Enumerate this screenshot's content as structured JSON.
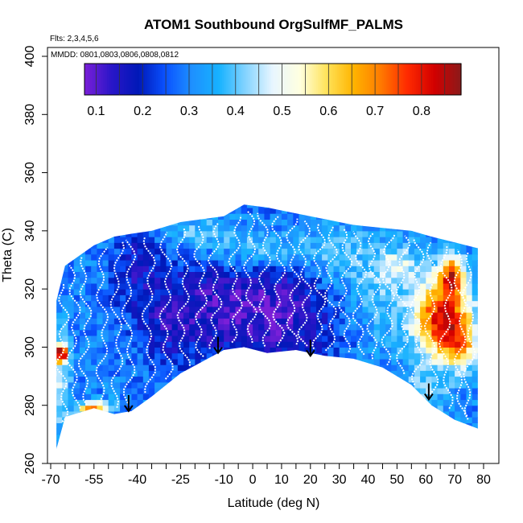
{
  "chart_data": {
    "type": "heatmap",
    "title": "ATOM1 Southbound OrgSulfMF_PALMS",
    "notes": {
      "flights": "Flts: 2,3,4,5,6",
      "dates": "MMDD: 0801,0803,0806,0808,0812"
    },
    "xlabel": "Latitude (deg N)",
    "ylabel": "Theta (C)",
    "xlim": [
      -70,
      80
    ],
    "ylim": [
      260,
      400
    ],
    "x_ticks": [
      -70,
      -55,
      -40,
      -25,
      -10,
      0,
      10,
      20,
      30,
      40,
      50,
      60,
      70,
      80
    ],
    "x_tick_labels": [
      "-70",
      "-55",
      "-40",
      "-25",
      "-10",
      "0",
      "10",
      "20",
      "30",
      "40",
      "50",
      "60",
      "70",
      "80"
    ],
    "y_ticks": [
      260,
      280,
      300,
      320,
      340,
      360,
      380,
      400
    ],
    "y_tick_labels": [
      "260",
      "280",
      "300",
      "320",
      "340",
      "360",
      "380",
      "400"
    ],
    "colorbar": {
      "min": 0.075,
      "max": 0.885,
      "ticks": [
        0.1,
        0.2,
        0.3,
        0.4,
        0.5,
        0.6,
        0.7,
        0.8
      ],
      "tick_labels": [
        "0.1",
        "0.2",
        "0.3",
        "0.4",
        "0.5",
        "0.6",
        "0.7",
        "0.8"
      ],
      "colors": [
        "#7b1fd8",
        "#2a16c8",
        "#0018b8",
        "#0a52ff",
        "#1e90ff",
        "#17b2ff",
        "#86d4ff",
        "#e8f6ff",
        "#ffffe0",
        "#ffe35a",
        "#ffb400",
        "#ff7b00",
        "#ff2a00",
        "#d20000",
        "#8b1a1a"
      ]
    },
    "domain": {
      "lat": [
        -68,
        -65,
        -55,
        -48,
        -42,
        -35,
        -25,
        -10,
        -3,
        5,
        15,
        25,
        35,
        45,
        55,
        62,
        70,
        78
      ],
      "theta_bottom": [
        265,
        276,
        279,
        277,
        278,
        283,
        291,
        299,
        300,
        298,
        299,
        297,
        296,
        293,
        287,
        280,
        275,
        272
      ],
      "theta_top": [
        316,
        328,
        335,
        338,
        339,
        340,
        343,
        345,
        349,
        348,
        346,
        344,
        342,
        341,
        340,
        338,
        336,
        334
      ]
    },
    "arrows": [
      {
        "lat": -43,
        "theta_tip": 278
      },
      {
        "lat": -12,
        "theta_tip": 298
      },
      {
        "lat": 20,
        "theta_tip": 297
      },
      {
        "lat": 61,
        "theta_tip": 282
      }
    ],
    "grid": false,
    "legend": "top (horizontal colorbar)"
  }
}
